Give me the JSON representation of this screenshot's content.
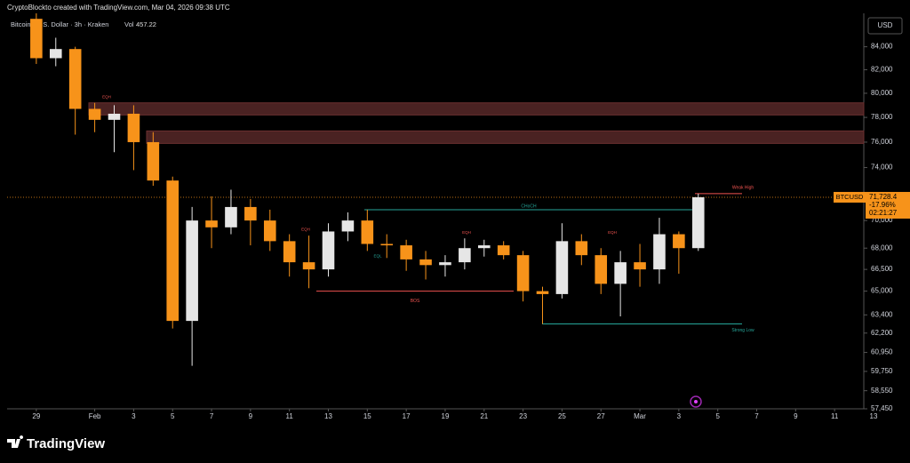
{
  "header": {
    "credit": "CryptoBlockto created with TradingView.com, Mar 04, 2026 09:38 UTC",
    "brand": "TradingView"
  },
  "chart_data": {
    "type": "candlestick",
    "title": "Bitcoin / U.S. Dollar · 3h · Kraken",
    "volume_label": "Vol",
    "volume": "457.22",
    "currency": "USD",
    "log_scale": true,
    "up_color": "#e6e6e6",
    "down_color": "#f7931a",
    "x": [
      "2026-01-29",
      "2026-01-30",
      "2026-01-31",
      "2026-02-01",
      "2026-02-02",
      "2026-02-03",
      "2026-02-04",
      "2026-02-05",
      "2026-02-06",
      "2026-02-07",
      "2026-02-08",
      "2026-02-09",
      "2026-02-10",
      "2026-02-11",
      "2026-02-12",
      "2026-02-13",
      "2026-02-14",
      "2026-02-15",
      "2026-02-16",
      "2026-02-17",
      "2026-02-18",
      "2026-02-19",
      "2026-02-20",
      "2026-02-21",
      "2026-02-22",
      "2026-02-23",
      "2026-02-24",
      "2026-02-25",
      "2026-02-26",
      "2026-02-27",
      "2026-02-28",
      "2026-03-01",
      "2026-03-02",
      "2026-03-03",
      "2026-03-04"
    ],
    "open": [
      86500,
      83000,
      83800,
      78700,
      77800,
      78300,
      76000,
      73000,
      63000,
      70000,
      69500,
      71000,
      70000,
      68500,
      67000,
      66500,
      69200,
      70000,
      68300,
      68200,
      67200,
      66800,
      67000,
      68000,
      68200,
      67500,
      65000,
      64800,
      68500,
      67500,
      65500,
      67000,
      66500,
      69000,
      68000
    ],
    "high": [
      87000,
      84800,
      84000,
      79200,
      79000,
      79000,
      76800,
      73300,
      71000,
      71800,
      72300,
      71600,
      70800,
      69000,
      68900,
      69800,
      70600,
      70800,
      69000,
      68600,
      67800,
      67500,
      68700,
      68600,
      68500,
      67800,
      65300,
      69800,
      69000,
      68000,
      67800,
      68300,
      70200,
      69200,
      72000
    ],
    "low": [
      82500,
      82300,
      76600,
      76800,
      75200,
      73800,
      72600,
      62500,
      60100,
      68000,
      69000,
      68200,
      67800,
      66000,
      65200,
      66000,
      68500,
      67800,
      67300,
      66400,
      65800,
      66000,
      66500,
      67400,
      67200,
      64300,
      62800,
      64500,
      66800,
      64800,
      63300,
      65300,
      65500,
      66200,
      67800
    ],
    "close": [
      83000,
      83800,
      78700,
      77800,
      78300,
      76000,
      73000,
      63000,
      70000,
      69500,
      71000,
      70000,
      68500,
      67000,
      66500,
      69200,
      70000,
      68300,
      68200,
      67200,
      66800,
      67000,
      68000,
      68200,
      67500,
      65000,
      64800,
      68500,
      67500,
      65500,
      67000,
      66500,
      69000,
      68000,
      71728.4
    ],
    "xlim": [
      "2026-01-28",
      "2026-03-13"
    ],
    "xticks": [
      {
        "value": "2026-01-29",
        "label": "29"
      },
      {
        "value": "2026-02-01",
        "label": "Feb"
      },
      {
        "value": "2026-02-03",
        "label": "3"
      },
      {
        "value": "2026-02-05",
        "label": "5"
      },
      {
        "value": "2026-02-07",
        "label": "7"
      },
      {
        "value": "2026-02-09",
        "label": "9"
      },
      {
        "value": "2026-02-11",
        "label": "11"
      },
      {
        "value": "2026-02-13",
        "label": "13"
      },
      {
        "value": "2026-02-15",
        "label": "15"
      },
      {
        "value": "2026-02-17",
        "label": "17"
      },
      {
        "value": "2026-02-19",
        "label": "19"
      },
      {
        "value": "2026-02-21",
        "label": "21"
      },
      {
        "value": "2026-02-23",
        "label": "23"
      },
      {
        "value": "2026-02-25",
        "label": "25"
      },
      {
        "value": "2026-02-27",
        "label": "27"
      },
      {
        "value": "2026-03-01",
        "label": "Mar"
      },
      {
        "value": "2026-03-03",
        "label": "3"
      },
      {
        "value": "2026-03-05",
        "label": "5"
      },
      {
        "value": "2026-03-07",
        "label": "7"
      },
      {
        "value": "2026-03-09",
        "label": "9"
      },
      {
        "value": "2026-03-11",
        "label": "11"
      },
      {
        "value": "2026-03-13",
        "label": "13"
      }
    ],
    "ylim": [
      57450,
      87000
    ],
    "yticks": [
      {
        "value": 84000,
        "label": "84,000"
      },
      {
        "value": 82000,
        "label": "82,000"
      },
      {
        "value": 80000,
        "label": "80,000"
      },
      {
        "value": 78000,
        "label": "78,000"
      },
      {
        "value": 76000,
        "label": "76,000"
      },
      {
        "value": 74000,
        "label": "74,000"
      },
      {
        "value": 70000,
        "label": "70,000"
      },
      {
        "value": 68000,
        "label": "68,000"
      },
      {
        "value": 66500,
        "label": "66,500"
      },
      {
        "value": 65000,
        "label": "65,000"
      },
      {
        "value": 63400,
        "label": "63,400"
      },
      {
        "value": 62200,
        "label": "62,200"
      },
      {
        "value": 60950,
        "label": "60,950"
      },
      {
        "value": 59750,
        "label": "59,750"
      },
      {
        "value": 58550,
        "label": "58,550"
      },
      {
        "value": 57450,
        "label": "57,450"
      }
    ],
    "last_price": {
      "symbol": "BTCUSD",
      "value": 71728.4,
      "label": "71,728.4",
      "change": "-17.96%",
      "countdown": "02:21:27",
      "color": "#f7931a"
    },
    "zone_color": "#4a2222",
    "zones": [
      {
        "from": 78200,
        "to": 79200
      },
      {
        "from": 75900,
        "to": 76900
      }
    ],
    "levels": [
      {
        "label": "CHoCH",
        "value": 70800,
        "color": "#26a69a"
      },
      {
        "label": "BOS",
        "value": 65000,
        "color": "#ef5350"
      },
      {
        "label": "Strong Low",
        "value": 62800,
        "color": "#26a69a"
      },
      {
        "label": "Weak High",
        "value": 72000,
        "color": "#ef5350"
      }
    ],
    "marks": [
      {
        "label": "EQH",
        "value": 79300,
        "color": "#ef5350"
      },
      {
        "label": "EQH",
        "value": 69000,
        "color": "#ef5350"
      },
      {
        "label": "EQL",
        "value": 67100,
        "color": "#26a69a"
      },
      {
        "label": "EQH",
        "value": 68800,
        "color": "#ef5350"
      },
      {
        "label": "EQH",
        "value": 68800,
        "color": "#ef5350"
      }
    ]
  }
}
